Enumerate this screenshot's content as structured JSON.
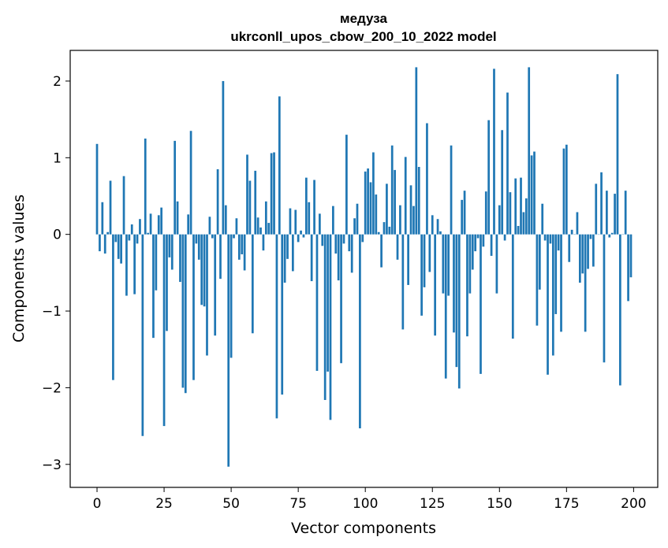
{
  "chart_data": {
    "type": "bar",
    "title_line1": "медуза",
    "title_line2": "ukrconll_upos_cbow_200_10_2022 model",
    "xlabel": "Vector components",
    "ylabel": "Components values",
    "xlim": [
      -10,
      209
    ],
    "ylim": [
      -3.3,
      2.4
    ],
    "xticks": [
      0,
      25,
      50,
      75,
      100,
      125,
      150,
      175,
      200
    ],
    "xtick_labels": [
      "0",
      "25",
      "50",
      "75",
      "100",
      "125",
      "150",
      "175",
      "200"
    ],
    "yticks": [
      -3,
      -2,
      -1,
      0,
      1,
      2
    ],
    "ytick_labels": [
      "−3",
      "−2",
      "−1",
      "0",
      "1",
      "2"
    ],
    "bar_color": "#1f77b4",
    "grid": false,
    "legend": "none",
    "x": [
      0,
      1,
      2,
      3,
      4,
      5,
      6,
      7,
      8,
      9,
      10,
      11,
      12,
      13,
      14,
      15,
      16,
      17,
      18,
      19,
      20,
      21,
      22,
      23,
      24,
      25,
      26,
      27,
      28,
      29,
      30,
      31,
      32,
      33,
      34,
      35,
      36,
      37,
      38,
      39,
      40,
      41,
      42,
      43,
      44,
      45,
      46,
      47,
      48,
      49,
      50,
      51,
      52,
      53,
      54,
      55,
      56,
      57,
      58,
      59,
      60,
      61,
      62,
      63,
      64,
      65,
      66,
      67,
      68,
      69,
      70,
      71,
      72,
      73,
      74,
      75,
      76,
      77,
      78,
      79,
      80,
      81,
      82,
      83,
      84,
      85,
      86,
      87,
      88,
      89,
      90,
      91,
      92,
      93,
      94,
      95,
      96,
      97,
      98,
      99,
      100,
      101,
      102,
      103,
      104,
      105,
      106,
      107,
      108,
      109,
      110,
      111,
      112,
      113,
      114,
      115,
      116,
      117,
      118,
      119,
      120,
      121,
      122,
      123,
      124,
      125,
      126,
      127,
      128,
      129,
      130,
      131,
      132,
      133,
      134,
      135,
      136,
      137,
      138,
      139,
      140,
      141,
      142,
      143,
      144,
      145,
      146,
      147,
      148,
      149,
      150,
      151,
      152,
      153,
      154,
      155,
      156,
      157,
      158,
      159,
      160,
      161,
      162,
      163,
      164,
      165,
      166,
      167,
      168,
      169,
      170,
      171,
      172,
      173,
      174,
      175,
      176,
      177,
      178,
      179,
      180,
      181,
      182,
      183,
      184,
      185,
      186,
      187,
      188,
      189,
      190,
      191,
      192,
      193,
      194,
      195,
      196,
      197,
      198,
      199
    ],
    "values": [
      1.18,
      -0.22,
      0.42,
      -0.25,
      0.03,
      0.7,
      -1.9,
      -0.1,
      -0.32,
      -0.38,
      0.76,
      -0.8,
      -0.08,
      0.13,
      -0.78,
      -0.12,
      0.2,
      -2.63,
      1.25,
      0.02,
      0.27,
      -1.35,
      -0.73,
      0.25,
      0.35,
      -2.5,
      -1.26,
      -0.3,
      -0.46,
      1.22,
      0.43,
      -0.62,
      -2.0,
      -2.07,
      0.26,
      1.35,
      -1.9,
      -0.12,
      -0.33,
      -0.92,
      -0.94,
      -1.58,
      0.23,
      -0.05,
      -1.32,
      0.85,
      -0.58,
      2.0,
      0.38,
      -3.03,
      -1.61,
      -0.05,
      0.21,
      -0.33,
      -0.26,
      -0.47,
      1.04,
      0.7,
      -1.29,
      0.83,
      0.22,
      0.09,
      -0.21,
      0.43,
      0.15,
      1.06,
      1.07,
      -2.4,
      1.8,
      -2.09,
      -0.63,
      -0.32,
      0.34,
      -0.48,
      0.32,
      -0.1,
      0.05,
      -0.04,
      0.74,
      0.42,
      -0.61,
      0.71,
      -1.78,
      0.27,
      -0.15,
      -2.16,
      -1.79,
      -2.42,
      0.37,
      -0.25,
      -0.6,
      -1.68,
      -0.12,
      1.3,
      -0.22,
      -0.5,
      0.21,
      0.4,
      -2.53,
      -0.1,
      0.82,
      0.86,
      0.68,
      1.07,
      0.52,
      0.03,
      -0.43,
      0.16,
      0.66,
      0.1,
      1.16,
      0.84,
      -0.33,
      0.38,
      -1.24,
      1.01,
      -0.66,
      0.64,
      0.37,
      2.18,
      0.88,
      -1.06,
      -0.69,
      1.45,
      -0.49,
      0.25,
      -1.32,
      0.2,
      0.04,
      -0.77,
      -1.88,
      -0.8,
      1.16,
      -1.28,
      -1.73,
      -2.01,
      0.45,
      0.57,
      -1.33,
      -0.77,
      -0.46,
      -0.22,
      -0.05,
      -1.82,
      -0.16,
      0.56,
      1.49,
      -0.28,
      2.16,
      -0.77,
      0.38,
      1.36,
      -0.08,
      1.85,
      0.55,
      -1.36,
      0.73,
      0.11,
      0.74,
      0.29,
      0.47,
      2.18,
      1.03,
      1.08,
      -1.19,
      -0.72,
      0.4,
      -0.08,
      -1.83,
      -0.12,
      -1.58,
      -1.04,
      -0.21,
      -1.27,
      1.12,
      1.17,
      -0.36,
      0.06,
      0.0,
      0.29,
      -0.63,
      -0.51,
      -1.27,
      -0.45,
      -0.06,
      -0.42,
      0.66,
      0.0,
      0.81,
      -1.67,
      0.57,
      -0.04,
      0.02,
      0.53,
      2.09,
      -1.97,
      0.0,
      0.57,
      -0.87,
      -0.56
    ]
  }
}
